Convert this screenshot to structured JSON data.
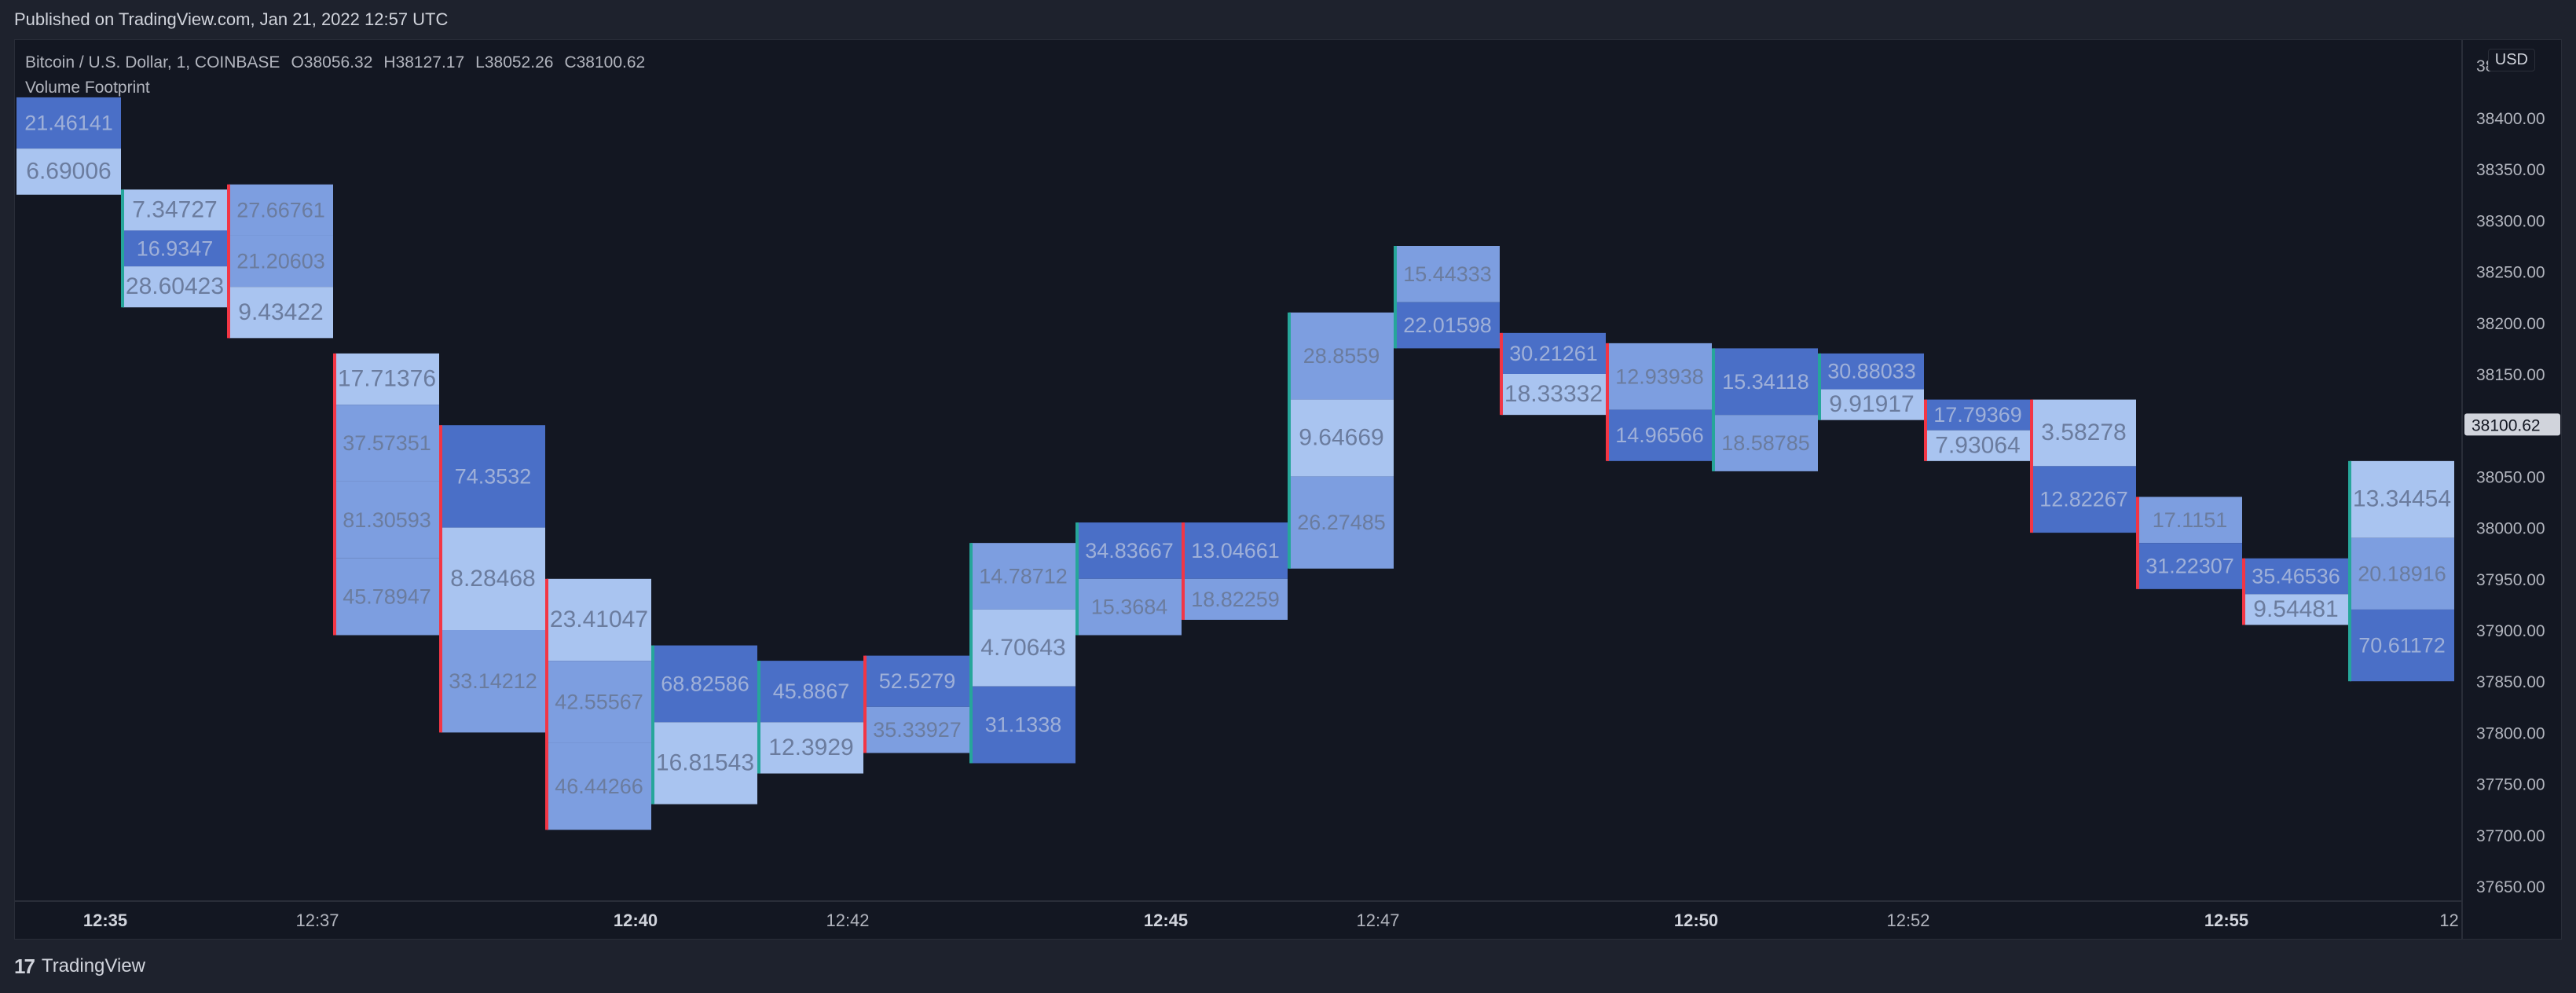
{
  "header": {
    "published": "Published on TradingView.com, Jan 21, 2022 12:57 UTC"
  },
  "legend": {
    "symbol": "Bitcoin / U.S. Dollar, 1, COINBASE",
    "o_label": "O",
    "o_value": "38056.32",
    "h_label": "H",
    "h_value": "38127.17",
    "l_label": "L",
    "l_value": "38052.26",
    "c_label": "C",
    "c_value": "38100.62",
    "indicator": "Volume Footprint"
  },
  "currency_button": "USD",
  "footer": {
    "logo": "17",
    "brand": "TradingView"
  },
  "colors": {
    "background": "#131722",
    "up": "#26a69a",
    "down": "#f23645",
    "cell_dark": "#4a6fc7",
    "cell_mid": "#7d9ee0",
    "cell_light": "#a9c4f0",
    "last_price_bg": "#d1d4dc"
  },
  "chart_data": {
    "type": "footprint",
    "ylim": [
      37625,
      38450
    ],
    "yticks": [
      37650,
      37700,
      37750,
      37800,
      37850,
      37900,
      37950,
      38000,
      38050,
      38100,
      38150,
      38200,
      38250,
      38300,
      38350,
      38400
    ],
    "ytick_labels": [
      "37650.00",
      "37700.00",
      "37750.00",
      "37800.00",
      "37850.00",
      "37900.00",
      "37950.00",
      "38000.00",
      "38050.00",
      "38100.00",
      "38150.00",
      "38200.00",
      "38250.00",
      "38300.00",
      "38350.00",
      "38400.00"
    ],
    "top_axis_label": "38",
    "last_price": 38100.62,
    "last_price_label": "38100.62",
    "xticks": [
      {
        "label": "12:35",
        "bar": 0.8,
        "bold": true
      },
      {
        "label": "12:37",
        "bar": 2.8,
        "bold": false
      },
      {
        "label": "12:40",
        "bar": 5.8,
        "bold": true
      },
      {
        "label": "12:42",
        "bar": 7.8,
        "bold": false
      },
      {
        "label": "12:45",
        "bar": 10.8,
        "bold": true
      },
      {
        "label": "12:47",
        "bar": 12.8,
        "bold": false
      },
      {
        "label": "12:50",
        "bar": 15.8,
        "bold": true
      },
      {
        "label": "12:52",
        "bar": 17.8,
        "bold": false
      },
      {
        "label": "12:55",
        "bar": 20.8,
        "bold": true
      },
      {
        "label": "12",
        "bar": 22.9,
        "bold": false
      }
    ],
    "bars": [
      {
        "dir": "none",
        "cells": [
          {
            "top": 38420,
            "bot": 38370,
            "v": "21.46141",
            "s": "dark"
          },
          {
            "top": 38370,
            "bot": 38325,
            "v": "6.69006",
            "s": "light"
          }
        ]
      },
      {
        "dir": "up",
        "cells": [
          {
            "top": 38330,
            "bot": 38290,
            "v": "7.34727",
            "s": "light"
          },
          {
            "top": 38290,
            "bot": 38255,
            "v": "16.9347",
            "s": "dark"
          },
          {
            "top": 38255,
            "bot": 38215,
            "v": "28.60423",
            "s": "light"
          }
        ]
      },
      {
        "dir": "down",
        "cells": [
          {
            "top": 38335,
            "bot": 38285,
            "v": "27.66761",
            "s": "mid"
          },
          {
            "top": 38285,
            "bot": 38235,
            "v": "21.20603",
            "s": "mid"
          },
          {
            "top": 38235,
            "bot": 38185,
            "v": "9.43422",
            "s": "light"
          }
        ]
      },
      {
        "dir": "down",
        "cells": [
          {
            "top": 38170,
            "bot": 38120,
            "v": "17.71376",
            "s": "light"
          },
          {
            "top": 38120,
            "bot": 38045,
            "v": "37.57351",
            "s": "mid"
          },
          {
            "top": 38045,
            "bot": 37970,
            "v": "81.30593",
            "s": "mid"
          },
          {
            "top": 37970,
            "bot": 37895,
            "v": "45.78947",
            "s": "mid"
          }
        ]
      },
      {
        "dir": "down",
        "cells": [
          {
            "top": 38100,
            "bot": 38000,
            "v": "74.3532",
            "s": "dark"
          },
          {
            "top": 38000,
            "bot": 37900,
            "v": "8.28468",
            "s": "light"
          },
          {
            "top": 37900,
            "bot": 37800,
            "v": "33.14212",
            "s": "mid"
          }
        ]
      },
      {
        "dir": "down",
        "cells": [
          {
            "top": 37950,
            "bot": 37870,
            "v": "23.41047",
            "s": "light"
          },
          {
            "top": 37870,
            "bot": 37790,
            "v": "42.55567",
            "s": "mid"
          },
          {
            "top": 37790,
            "bot": 37705,
            "v": "46.44266",
            "s": "mid"
          }
        ]
      },
      {
        "dir": "up",
        "cells": [
          {
            "top": 37885,
            "bot": 37810,
            "v": "68.82586",
            "s": "dark"
          },
          {
            "top": 37810,
            "bot": 37730,
            "v": "16.81543",
            "s": "light"
          }
        ]
      },
      {
        "dir": "up",
        "cells": [
          {
            "top": 37870,
            "bot": 37810,
            "v": "45.8867",
            "s": "dark"
          },
          {
            "top": 37810,
            "bot": 37760,
            "v": "12.3929",
            "s": "light"
          }
        ]
      },
      {
        "dir": "down",
        "cells": [
          {
            "top": 37875,
            "bot": 37825,
            "v": "52.5279",
            "s": "dark"
          },
          {
            "top": 37825,
            "bot": 37780,
            "v": "35.33927",
            "s": "mid"
          }
        ]
      },
      {
        "dir": "up",
        "cells": [
          {
            "top": 37985,
            "bot": 37920,
            "v": "14.78712",
            "s": "mid"
          },
          {
            "top": 37920,
            "bot": 37845,
            "v": "4.70643",
            "s": "light"
          },
          {
            "top": 37845,
            "bot": 37770,
            "v": "31.1338",
            "s": "dark"
          }
        ]
      },
      {
        "dir": "up",
        "cells": [
          {
            "top": 38005,
            "bot": 37950,
            "v": "34.83667",
            "s": "dark"
          },
          {
            "top": 37950,
            "bot": 37895,
            "v": "15.3684",
            "s": "mid"
          }
        ]
      },
      {
        "dir": "down",
        "cells": [
          {
            "top": 38005,
            "bot": 37950,
            "v": "13.04661",
            "s": "dark"
          },
          {
            "top": 37950,
            "bot": 37910,
            "v": "18.82259",
            "s": "mid"
          }
        ]
      },
      {
        "dir": "up",
        "cells": [
          {
            "top": 38210,
            "bot": 38125,
            "v": "28.8559",
            "s": "mid"
          },
          {
            "top": 38125,
            "bot": 38050,
            "v": "9.64669",
            "s": "light"
          },
          {
            "top": 38050,
            "bot": 37960,
            "v": "26.27485",
            "s": "mid"
          }
        ]
      },
      {
        "dir": "up",
        "cells": [
          {
            "top": 38275,
            "bot": 38220,
            "v": "15.44333",
            "s": "mid"
          },
          {
            "top": 38220,
            "bot": 38175,
            "v": "22.01598",
            "s": "dark"
          }
        ]
      },
      {
        "dir": "down",
        "cells": [
          {
            "top": 38190,
            "bot": 38150,
            "v": "30.21261",
            "s": "dark"
          },
          {
            "top": 38150,
            "bot": 38110,
            "v": "18.33332",
            "s": "light"
          }
        ]
      },
      {
        "dir": "down",
        "cells": [
          {
            "top": 38180,
            "bot": 38115,
            "v": "12.93938",
            "s": "mid"
          },
          {
            "top": 38115,
            "bot": 38065,
            "v": "14.96566",
            "s": "dark"
          }
        ]
      },
      {
        "dir": "up",
        "cells": [
          {
            "top": 38175,
            "bot": 38110,
            "v": "15.34118",
            "s": "dark"
          },
          {
            "top": 38110,
            "bot": 38055,
            "v": "18.58785",
            "s": "mid"
          }
        ]
      },
      {
        "dir": "up",
        "cells": [
          {
            "top": 38170,
            "bot": 38135,
            "v": "30.88033",
            "s": "dark"
          },
          {
            "top": 38135,
            "bot": 38105,
            "v": "9.91917",
            "s": "light"
          }
        ]
      },
      {
        "dir": "down",
        "cells": [
          {
            "top": 38125,
            "bot": 38095,
            "v": "17.79369",
            "s": "dark"
          },
          {
            "top": 38095,
            "bot": 38065,
            "v": "7.93064",
            "s": "light"
          }
        ]
      },
      {
        "dir": "down",
        "cells": [
          {
            "top": 38125,
            "bot": 38060,
            "v": "3.58278",
            "s": "light"
          },
          {
            "top": 38060,
            "bot": 37995,
            "v": "12.82267",
            "s": "dark"
          }
        ]
      },
      {
        "dir": "down",
        "cells": [
          {
            "top": 38030,
            "bot": 37985,
            "v": "17.1151",
            "s": "mid"
          },
          {
            "top": 37985,
            "bot": 37940,
            "v": "31.22307",
            "s": "dark"
          }
        ]
      },
      {
        "dir": "down",
        "cells": [
          {
            "top": 37970,
            "bot": 37935,
            "v": "35.46536",
            "s": "dark"
          },
          {
            "top": 37935,
            "bot": 37905,
            "v": "9.54481",
            "s": "light"
          }
        ]
      },
      {
        "dir": "up",
        "cells": [
          {
            "top": 38065,
            "bot": 37990,
            "v": "13.34454",
            "s": "light"
          },
          {
            "top": 37990,
            "bot": 37920,
            "v": "20.18916",
            "s": "mid"
          },
          {
            "top": 37920,
            "bot": 37850,
            "v": "70.61172",
            "s": "dark"
          }
        ]
      }
    ]
  }
}
